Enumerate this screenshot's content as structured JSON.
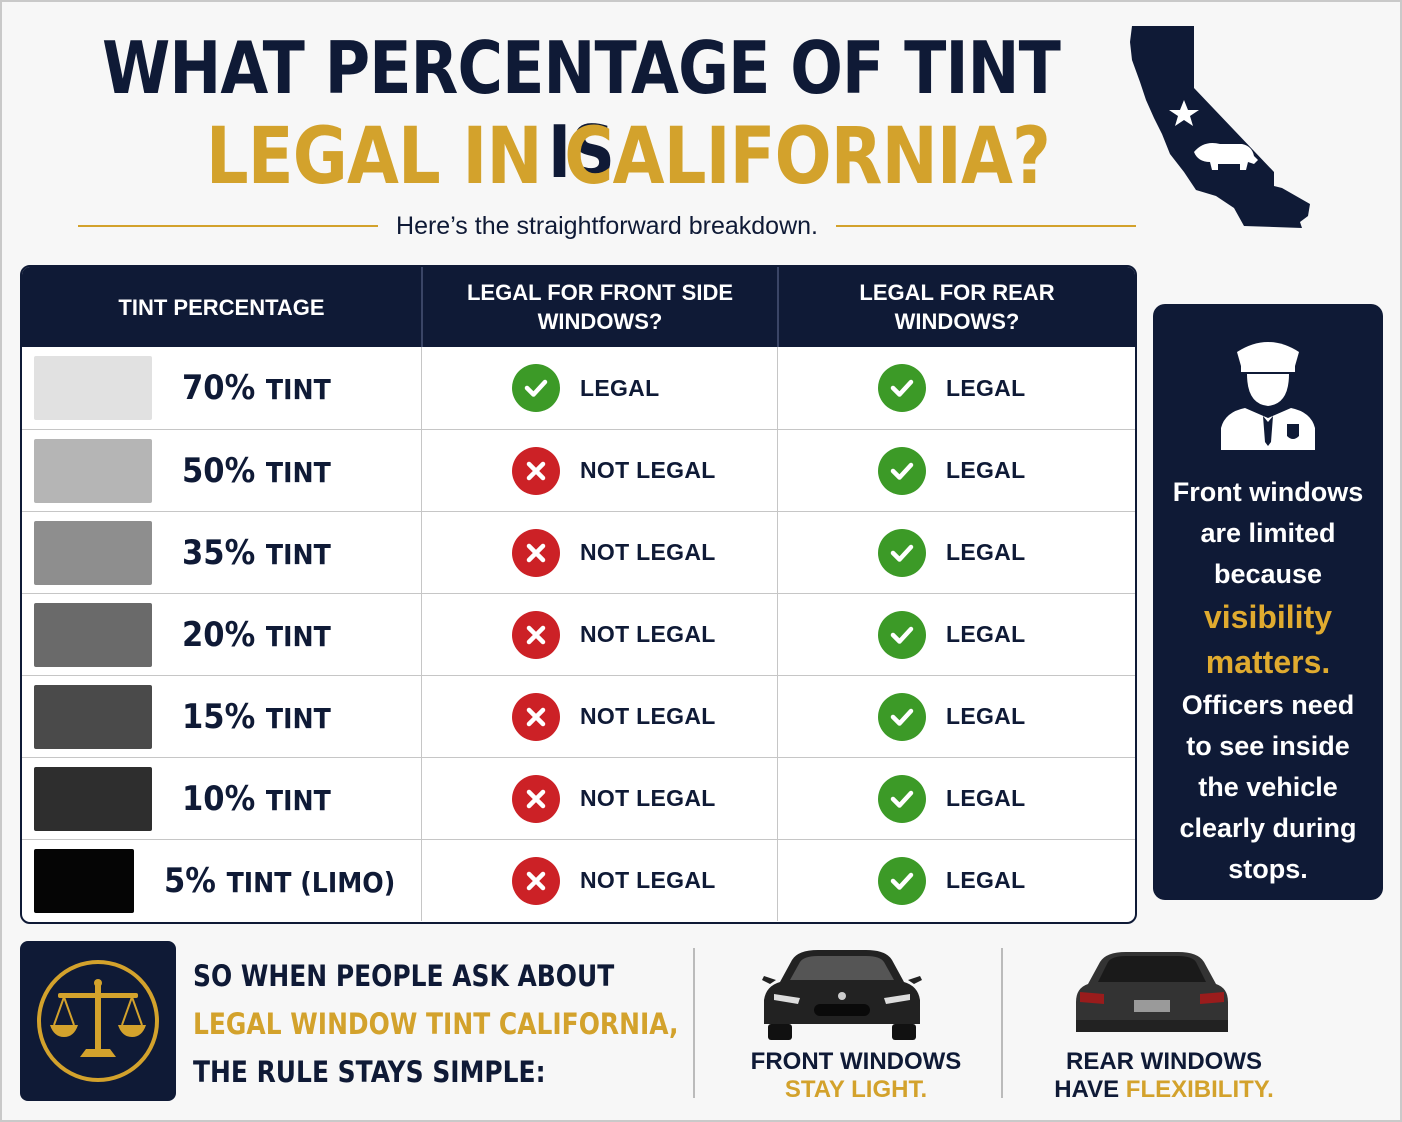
{
  "header": {
    "title_line1": "WHAT PERCENTAGE OF TINT IS",
    "title_line2": "LEGAL IN CALIFORNIA?",
    "subtitle": "Here’s the straightforward breakdown."
  },
  "table": {
    "headers": [
      "TINT PERCENTAGE",
      "LEGAL FOR FRONT SIDE WINDOWS?",
      "LEGAL FOR REAR WINDOWS?"
    ],
    "rows": [
      {
        "pct": "70%",
        "word": "TINT",
        "swatch": "#e1e1e1",
        "front": "LEGAL",
        "rear": "LEGAL"
      },
      {
        "pct": "50%",
        "word": "TINT",
        "swatch": "#b5b5b5",
        "front": "NOT LEGAL",
        "rear": "LEGAL"
      },
      {
        "pct": "35%",
        "word": "TINT",
        "swatch": "#8e8e8e",
        "front": "NOT LEGAL",
        "rear": "LEGAL"
      },
      {
        "pct": "20%",
        "word": "TINT",
        "swatch": "#6a6a6a",
        "front": "NOT LEGAL",
        "rear": "LEGAL"
      },
      {
        "pct": "15%",
        "word": "TINT",
        "swatch": "#4a4a4a",
        "front": "NOT LEGAL",
        "rear": "LEGAL"
      },
      {
        "pct": "10%",
        "word": "TINT",
        "swatch": "#2e2e2e",
        "front": "NOT LEGAL",
        "rear": "LEGAL"
      },
      {
        "pct": "5%",
        "word": "TINT (LIMO)",
        "swatch": "#050505",
        "front": "NOT LEGAL",
        "rear": "LEGAL"
      }
    ]
  },
  "info_card": {
    "icon": "police-officer-icon",
    "line1": "Front windows",
    "line2": "are limited",
    "line3": "because",
    "accent1": "visibility",
    "accent2": "matters.",
    "line4": "Officers need",
    "line5": "to see inside",
    "line6": "the vehicle",
    "line7": "clearly during",
    "line8": "stops."
  },
  "bottom": {
    "icon": "scales-of-justice-icon",
    "line1": "SO WHEN PEOPLE ASK ABOUT",
    "line2": "LEGAL WINDOW TINT CALIFORNIA,",
    "line3": "THE RULE STAYS SIMPLE:",
    "front_caption1": "FRONT WINDOWS",
    "front_caption2": "STAY LIGHT.",
    "rear_caption1": "REAR WINDOWS",
    "rear_caption2_a": "HAVE ",
    "rear_caption2_b": "FLEXIBILITY."
  },
  "colors": {
    "navy": "#0f1a36",
    "gold": "#d3a22c",
    "legal_green": "#3c9a27",
    "not_legal_red": "#cc2126"
  }
}
